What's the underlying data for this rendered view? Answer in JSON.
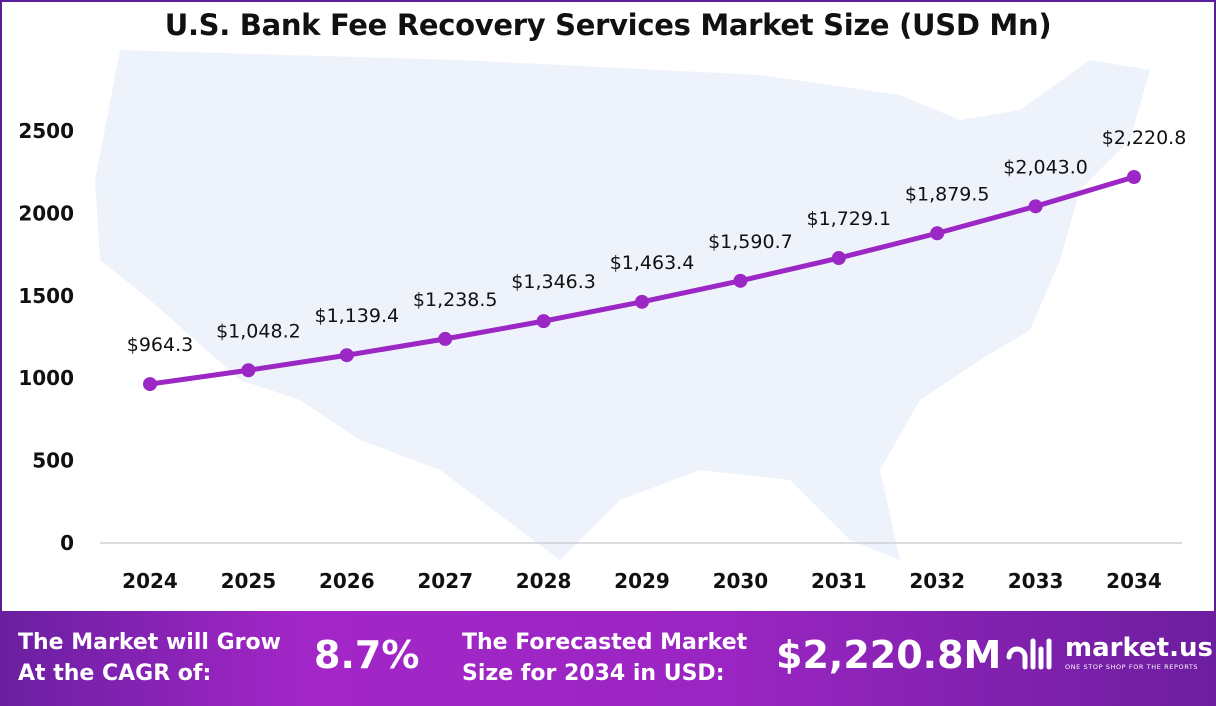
{
  "chart_data": {
    "type": "line",
    "title": "U.S. Bank Fee Recovery Services Market Size (USD Mn)",
    "categories": [
      "2024",
      "2025",
      "2026",
      "2027",
      "2028",
      "2029",
      "2030",
      "2031",
      "2032",
      "2033",
      "2034"
    ],
    "values": [
      964.3,
      1048.2,
      1139.4,
      1238.5,
      1346.3,
      1463.4,
      1590.7,
      1729.1,
      1879.5,
      2043.0,
      2220.8
    ],
    "data_labels": [
      "$964.3",
      "$1,048.2",
      "$1,139.4",
      "$1,238.5",
      "$1,346.3",
      "$1,463.4",
      "$1,590.7",
      "$1,729.1",
      "$1,879.5",
      "$2,043.0",
      "$2,220.8"
    ],
    "yticks": [
      "0",
      "500",
      "1000",
      "1500",
      "2000",
      "2500"
    ],
    "ylim": [
      0,
      2500
    ],
    "xlabel": "",
    "ylabel": "",
    "grid": false,
    "line_color": "#9b27c4",
    "background": "U.S. map silhouette"
  },
  "footer": {
    "cagr_text_1": "The Market will Grow",
    "cagr_text_2": "At the CAGR of:",
    "cagr_value": "8.7%",
    "forecast_text_1": "The Forecasted Market",
    "forecast_text_2": "Size for 2034 in USD:",
    "forecast_value": "$2,220.8M",
    "logo_name": "market.us",
    "logo_tagline": "ONE STOP SHOP FOR THE REPORTS"
  }
}
